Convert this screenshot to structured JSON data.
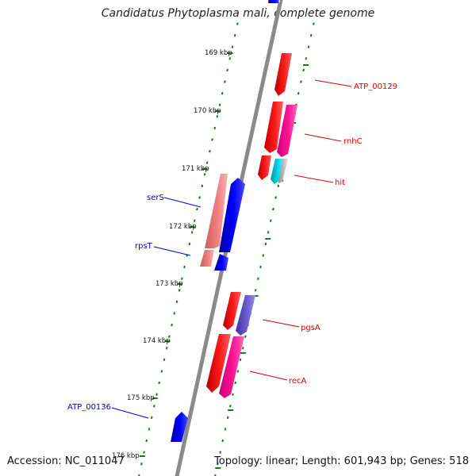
{
  "title": "Candidatus Phytoplasma mali, complete genome",
  "accession": "Accession: NC_011047",
  "summary": "Topology: linear; Length: 601,943 bp; Genes: 518",
  "scale_labels": [
    "169 kbp",
    "170 kbp",
    "171 kbp",
    "172 kbp",
    "173 kbp",
    "174 kbp",
    "175 kbp",
    "176 kbp"
  ],
  "genes": [
    {
      "name": "ATP_00129",
      "strand": "forward",
      "color": "#dd0000"
    },
    {
      "name": "rnhC",
      "strand": "forward",
      "color": "#dd0000"
    },
    {
      "name": "hit",
      "strand": "forward",
      "color": "#dd0000"
    },
    {
      "name": "serS",
      "strand": "reverse",
      "color": "#0000cc"
    },
    {
      "name": "rpsT",
      "strand": "reverse",
      "color": "#0000cc"
    },
    {
      "name": "pgsA",
      "strand": "forward",
      "color": "#dd0000"
    },
    {
      "name": "recA",
      "strand": "forward",
      "color": "#dd0000"
    },
    {
      "name": "ATP_00136",
      "strand": "reverse",
      "color": "#0000cc"
    }
  ],
  "colors": {
    "backbone": "#8a8a8a",
    "ticks": "#1a7a1a",
    "forward_label": "#dd0000",
    "reverse_label": "#0000cc",
    "cds_red": "#ff0000",
    "cds_blue": "#0000ff",
    "cds_pink": "#ff1493",
    "cds_salmon": "#f08080",
    "cds_purple": "#6a5acd",
    "cds_cyan": "#00ccdd",
    "cds_grey": "#bbbbbb"
  }
}
